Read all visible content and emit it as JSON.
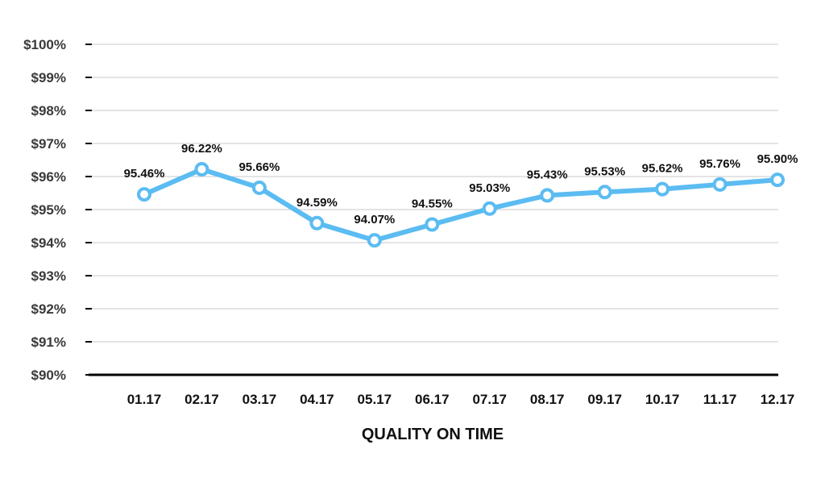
{
  "chart_data": {
    "type": "line",
    "title": "",
    "xlabel": "QUALITY ON TIME",
    "ylabel": "",
    "categories": [
      "01.17",
      "02.17",
      "03.17",
      "04.17",
      "05.17",
      "06.17",
      "07.17",
      "08.17",
      "09.17",
      "10.17",
      "11.17",
      "12.17"
    ],
    "series": [
      {
        "values": [
          95.46,
          96.22,
          95.66,
          94.59,
          94.07,
          94.55,
          95.03,
          95.43,
          95.53,
          95.62,
          95.76,
          95.9
        ],
        "data_labels": [
          "95.46%",
          "96.22%",
          "95.66%",
          "94.59%",
          "94.07%",
          "94.55%",
          "95.03%",
          "95.43%",
          "95.53%",
          "95.62%",
          "95.76%",
          "95.90%"
        ],
        "color": "#5bbcf2"
      }
    ],
    "yticks": [
      90,
      91,
      92,
      93,
      94,
      95,
      96,
      97,
      98,
      99,
      100
    ],
    "ytick_labels": [
      "$90%",
      "$91%",
      "$92%",
      "$93%",
      "$94%",
      "$95%",
      "$96%",
      "$97%",
      "$98%",
      "$99%",
      "$100%"
    ],
    "ylim": [
      90,
      100
    ],
    "grid": true,
    "legend": "none",
    "colors": {
      "line": "#5bbcf2",
      "grid": "#c8c8c8",
      "axis": "#000000",
      "marker_fill": "#ffffff"
    }
  }
}
